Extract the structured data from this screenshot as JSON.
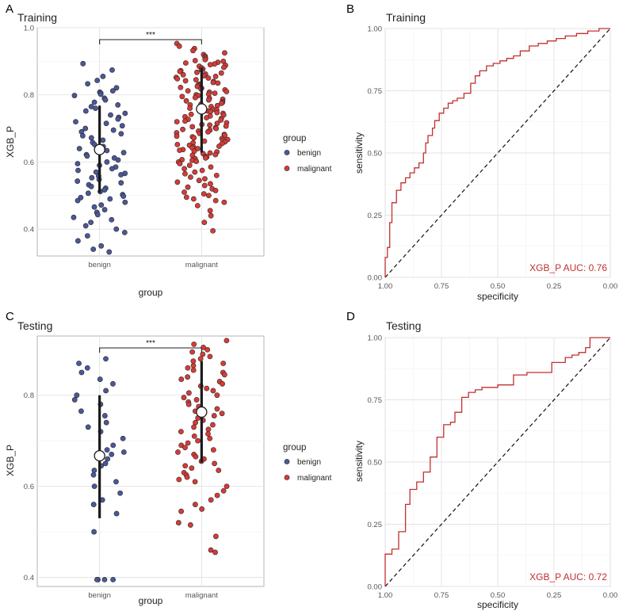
{
  "colors": {
    "benign": "#4a5899",
    "malignant": "#d73b37",
    "roc": "#c0302f"
  },
  "chart_data": [
    {
      "panel": "A",
      "type": "scatter",
      "title": "Training",
      "xlabel": "group",
      "ylabel": "XGB_P",
      "categories": [
        "benign",
        "malignant"
      ],
      "ylim": [
        0.32,
        1.0
      ],
      "yticks": [
        0.4,
        0.6,
        0.8,
        1.0
      ],
      "ytick_labels": [
        "0.4",
        "0.6",
        "0.8",
        "1.0"
      ],
      "legend": {
        "title": "group",
        "entries": [
          "benign",
          "malignant"
        ],
        "placement": "right"
      },
      "significance": "***",
      "summary": [
        {
          "group": "benign",
          "mean": 0.637,
          "low": 0.508,
          "high": 0.768
        },
        {
          "group": "malignant",
          "mean": 0.758,
          "low": 0.628,
          "high": 0.88
        }
      ],
      "series": [
        {
          "name": "benign",
          "values": [
            0.893,
            0.874,
            0.855,
            0.843,
            0.833,
            0.821,
            0.812,
            0.808,
            0.805,
            0.802,
            0.798,
            0.79,
            0.785,
            0.778,
            0.77,
            0.765,
            0.76,
            0.752,
            0.745,
            0.74,
            0.733,
            0.728,
            0.72,
            0.715,
            0.708,
            0.7,
            0.695,
            0.69,
            0.684,
            0.678,
            0.672,
            0.665,
            0.658,
            0.652,
            0.646,
            0.64,
            0.634,
            0.628,
            0.622,
            0.618,
            0.612,
            0.606,
            0.6,
            0.595,
            0.59,
            0.585,
            0.58,
            0.575,
            0.57,
            0.566,
            0.562,
            0.558,
            0.553,
            0.548,
            0.543,
            0.538,
            0.532,
            0.527,
            0.522,
            0.517,
            0.512,
            0.507,
            0.503,
            0.498,
            0.494,
            0.49,
            0.485,
            0.48,
            0.472,
            0.466,
            0.458,
            0.45,
            0.443,
            0.435,
            0.428,
            0.42,
            0.41,
            0.4,
            0.39,
            0.38,
            0.365,
            0.35,
            0.34,
            0.332
          ]
        },
        {
          "name": "malignant",
          "values": [
            0.953,
            0.945,
            0.938,
            0.932,
            0.925,
            0.92,
            0.915,
            0.912,
            0.908,
            0.905,
            0.902,
            0.9,
            0.897,
            0.895,
            0.892,
            0.89,
            0.888,
            0.885,
            0.882,
            0.88,
            0.877,
            0.875,
            0.872,
            0.87,
            0.867,
            0.865,
            0.862,
            0.86,
            0.857,
            0.855,
            0.852,
            0.85,
            0.848,
            0.845,
            0.842,
            0.84,
            0.837,
            0.835,
            0.832,
            0.83,
            0.828,
            0.825,
            0.822,
            0.82,
            0.818,
            0.815,
            0.812,
            0.81,
            0.808,
            0.805,
            0.802,
            0.8,
            0.798,
            0.795,
            0.792,
            0.79,
            0.787,
            0.785,
            0.782,
            0.78,
            0.777,
            0.775,
            0.772,
            0.77,
            0.768,
            0.765,
            0.762,
            0.76,
            0.757,
            0.755,
            0.752,
            0.75,
            0.747,
            0.745,
            0.742,
            0.74,
            0.737,
            0.735,
            0.732,
            0.73,
            0.727,
            0.725,
            0.722,
            0.72,
            0.717,
            0.715,
            0.712,
            0.71,
            0.707,
            0.705,
            0.702,
            0.7,
            0.697,
            0.695,
            0.692,
            0.69,
            0.687,
            0.685,
            0.682,
            0.68,
            0.677,
            0.675,
            0.672,
            0.67,
            0.667,
            0.665,
            0.662,
            0.66,
            0.657,
            0.655,
            0.652,
            0.65,
            0.647,
            0.645,
            0.642,
            0.64,
            0.637,
            0.635,
            0.632,
            0.63,
            0.627,
            0.625,
            0.622,
            0.62,
            0.617,
            0.615,
            0.612,
            0.61,
            0.607,
            0.605,
            0.602,
            0.6,
            0.595,
            0.59,
            0.585,
            0.58,
            0.575,
            0.57,
            0.565,
            0.56,
            0.555,
            0.55,
            0.545,
            0.54,
            0.535,
            0.53,
            0.525,
            0.52,
            0.515,
            0.51,
            0.505,
            0.5,
            0.495,
            0.49,
            0.485,
            0.48,
            0.47,
            0.455,
            0.44,
            0.42,
            0.395
          ]
        }
      ]
    },
    {
      "panel": "B",
      "type": "line",
      "title": "Training",
      "xlabel": "specificity",
      "ylabel": "sensitivity",
      "xlim": [
        1.0,
        0.0
      ],
      "ylim": [
        0.0,
        1.0
      ],
      "xticks": [
        1.0,
        0.75,
        0.5,
        0.25,
        0.0
      ],
      "xtick_labels": [
        "1.00",
        "0.75",
        "0.50",
        "0.25",
        "0.00"
      ],
      "yticks": [
        0.0,
        0.25,
        0.5,
        0.75,
        1.0
      ],
      "ytick_labels": [
        "0.00",
        "0.25",
        "0.50",
        "0.75",
        "1.00"
      ],
      "annotation": "XGB_P AUC: 0.76",
      "series": [
        {
          "name": "XGB_P",
          "x": [
            1.0,
            1.0,
            0.99,
            0.99,
            0.98,
            0.98,
            0.97,
            0.97,
            0.95,
            0.95,
            0.93,
            0.93,
            0.91,
            0.91,
            0.89,
            0.89,
            0.87,
            0.87,
            0.85,
            0.85,
            0.83,
            0.83,
            0.82,
            0.82,
            0.81,
            0.81,
            0.79,
            0.79,
            0.78,
            0.78,
            0.76,
            0.76,
            0.74,
            0.74,
            0.72,
            0.72,
            0.7,
            0.7,
            0.68,
            0.68,
            0.65,
            0.65,
            0.62,
            0.62,
            0.6,
            0.6,
            0.58,
            0.58,
            0.55,
            0.55,
            0.52,
            0.52,
            0.49,
            0.49,
            0.46,
            0.46,
            0.43,
            0.43,
            0.4,
            0.4,
            0.36,
            0.36,
            0.32,
            0.32,
            0.28,
            0.28,
            0.24,
            0.24,
            0.2,
            0.2,
            0.15,
            0.15,
            0.1,
            0.1,
            0.05,
            0.05,
            0.0
          ],
          "y": [
            0.0,
            0.08,
            0.08,
            0.12,
            0.12,
            0.22,
            0.22,
            0.3,
            0.3,
            0.35,
            0.35,
            0.38,
            0.38,
            0.4,
            0.4,
            0.42,
            0.42,
            0.44,
            0.44,
            0.46,
            0.46,
            0.5,
            0.5,
            0.54,
            0.54,
            0.57,
            0.57,
            0.6,
            0.6,
            0.63,
            0.63,
            0.66,
            0.66,
            0.68,
            0.68,
            0.7,
            0.7,
            0.71,
            0.71,
            0.72,
            0.72,
            0.74,
            0.74,
            0.78,
            0.78,
            0.81,
            0.81,
            0.83,
            0.83,
            0.85,
            0.85,
            0.86,
            0.86,
            0.87,
            0.87,
            0.88,
            0.88,
            0.89,
            0.89,
            0.91,
            0.91,
            0.93,
            0.93,
            0.94,
            0.94,
            0.95,
            0.95,
            0.96,
            0.96,
            0.97,
            0.97,
            0.98,
            0.98,
            0.99,
            0.99,
            1.0,
            1.0
          ]
        }
      ]
    },
    {
      "panel": "C",
      "type": "scatter",
      "title": "Testing",
      "xlabel": "group",
      "ylabel": "XGB_P",
      "categories": [
        "benign",
        "malignant"
      ],
      "ylim": [
        0.38,
        0.93
      ],
      "yticks": [
        0.4,
        0.6,
        0.8
      ],
      "ytick_labels": [
        "0.4",
        "0.6",
        "0.8"
      ],
      "legend": {
        "title": "group",
        "entries": [
          "benign",
          "malignant"
        ],
        "placement": "right"
      },
      "significance": "***",
      "summary": [
        {
          "group": "benign",
          "mean": 0.667,
          "low": 0.53,
          "high": 0.8
        },
        {
          "group": "malignant",
          "mean": 0.763,
          "low": 0.652,
          "high": 0.875
        }
      ],
      "series": [
        {
          "name": "benign",
          "values": [
            0.88,
            0.87,
            0.86,
            0.85,
            0.835,
            0.825,
            0.81,
            0.8,
            0.79,
            0.78,
            0.765,
            0.755,
            0.74,
            0.73,
            0.72,
            0.705,
            0.69,
            0.68,
            0.675,
            0.67,
            0.66,
            0.65,
            0.645,
            0.635,
            0.625,
            0.61,
            0.6,
            0.585,
            0.57,
            0.56,
            0.54,
            0.5,
            0.395,
            0.395,
            0.395,
            0.395
          ]
        },
        {
          "name": "malignant",
          "values": [
            0.92,
            0.912,
            0.905,
            0.9,
            0.895,
            0.89,
            0.885,
            0.88,
            0.875,
            0.87,
            0.865,
            0.86,
            0.855,
            0.85,
            0.845,
            0.84,
            0.835,
            0.83,
            0.825,
            0.82,
            0.815,
            0.81,
            0.805,
            0.8,
            0.795,
            0.79,
            0.785,
            0.78,
            0.775,
            0.77,
            0.765,
            0.76,
            0.755,
            0.75,
            0.745,
            0.74,
            0.735,
            0.73,
            0.725,
            0.72,
            0.715,
            0.71,
            0.705,
            0.7,
            0.695,
            0.69,
            0.685,
            0.68,
            0.675,
            0.67,
            0.665,
            0.66,
            0.655,
            0.65,
            0.645,
            0.64,
            0.635,
            0.63,
            0.625,
            0.62,
            0.615,
            0.61,
            0.6,
            0.59,
            0.58,
            0.57,
            0.56,
            0.55,
            0.545,
            0.52,
            0.515,
            0.49,
            0.46,
            0.455
          ]
        }
      ]
    },
    {
      "panel": "D",
      "type": "line",
      "title": "Testing",
      "xlabel": "specificity",
      "ylabel": "sensitivity",
      "xlim": [
        1.0,
        0.0
      ],
      "ylim": [
        0.0,
        1.0
      ],
      "xticks": [
        1.0,
        0.75,
        0.5,
        0.25,
        0.0
      ],
      "xtick_labels": [
        "1.00",
        "0.75",
        "0.50",
        "0.25",
        "0.00"
      ],
      "yticks": [
        0.0,
        0.25,
        0.5,
        0.75,
        1.0
      ],
      "ytick_labels": [
        "0.00",
        "0.25",
        "0.50",
        "0.75",
        "1.00"
      ],
      "annotation": "XGB_P AUC: 0.72",
      "series": [
        {
          "name": "XGB_P",
          "x": [
            1.0,
            1.0,
            0.97,
            0.97,
            0.94,
            0.94,
            0.91,
            0.91,
            0.89,
            0.89,
            0.86,
            0.86,
            0.83,
            0.83,
            0.8,
            0.8,
            0.77,
            0.77,
            0.74,
            0.74,
            0.71,
            0.71,
            0.69,
            0.69,
            0.66,
            0.66,
            0.63,
            0.63,
            0.6,
            0.6,
            0.57,
            0.57,
            0.5,
            0.5,
            0.43,
            0.43,
            0.37,
            0.37,
            0.26,
            0.26,
            0.2,
            0.2,
            0.17,
            0.17,
            0.14,
            0.14,
            0.11,
            0.11,
            0.09,
            0.09,
            0.0
          ],
          "y": [
            0.0,
            0.13,
            0.13,
            0.15,
            0.15,
            0.22,
            0.22,
            0.33,
            0.33,
            0.39,
            0.39,
            0.42,
            0.42,
            0.46,
            0.46,
            0.52,
            0.52,
            0.6,
            0.6,
            0.65,
            0.65,
            0.66,
            0.66,
            0.7,
            0.7,
            0.76,
            0.76,
            0.78,
            0.78,
            0.79,
            0.79,
            0.8,
            0.8,
            0.81,
            0.81,
            0.85,
            0.85,
            0.86,
            0.86,
            0.9,
            0.9,
            0.92,
            0.92,
            0.93,
            0.93,
            0.94,
            0.94,
            0.96,
            0.96,
            1.0,
            1.0
          ]
        }
      ]
    }
  ]
}
